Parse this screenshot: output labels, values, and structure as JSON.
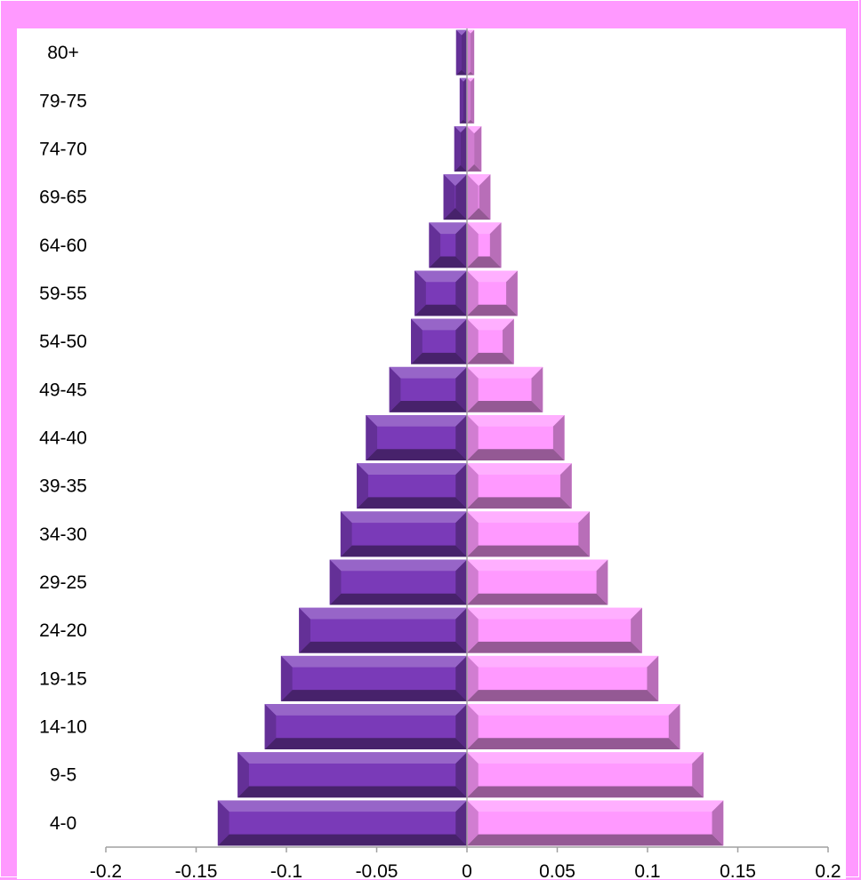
{
  "chart_data": {
    "type": "bar",
    "orientation": "horizontal",
    "title": "",
    "xlabel": "",
    "ylabel": "",
    "xlim": [
      -0.2,
      0.2
    ],
    "x_ticks": [
      "-0.2",
      "-0.15",
      "-0.1",
      "-0.05",
      "0",
      "0.05",
      "0.1",
      "0.15",
      "0.2"
    ],
    "x_tick_values": [
      -0.2,
      -0.15,
      -0.1,
      -0.05,
      0,
      0.05,
      0.1,
      0.15,
      0.2
    ],
    "grid": false,
    "legend": "none",
    "categories": [
      "80+",
      "79-75",
      "74-70",
      "69-65",
      "64-60",
      "59-55",
      "54-50",
      "49-45",
      "44-40",
      "39-35",
      "34-30",
      "29-25",
      "24-20",
      "19-15",
      "14-10",
      "9-5",
      "4-0"
    ],
    "series": [
      {
        "color": "#7a3ab8",
        "values": [
          -0.006,
          -0.004,
          -0.007,
          -0.013,
          -0.021,
          -0.029,
          -0.031,
          -0.043,
          -0.056,
          -0.061,
          -0.07,
          -0.076,
          -0.093,
          -0.103,
          -0.112,
          -0.127,
          -0.138
        ]
      },
      {
        "color": "#ff99ff",
        "values": [
          0.004,
          0.004,
          0.008,
          0.013,
          0.019,
          0.028,
          0.026,
          0.042,
          0.054,
          0.058,
          0.068,
          0.078,
          0.097,
          0.106,
          0.118,
          0.131,
          0.142
        ]
      }
    ]
  }
}
